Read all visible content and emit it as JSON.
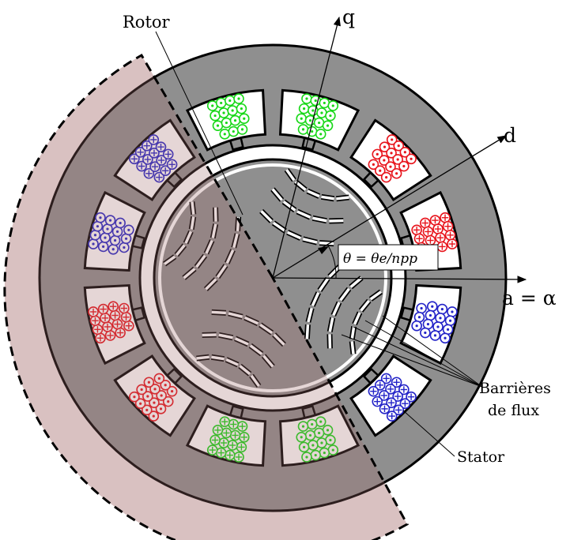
{
  "labels": {
    "rotor": "Rotor",
    "stator": "Stator",
    "q_axis": "q",
    "d_axis": "d",
    "a_axis": "a = α",
    "angle": "θ = θe/npp",
    "flux_barriers_line1": "Barrières",
    "flux_barriers_line2": "de flux"
  },
  "colors": {
    "stator": "#8f8f8f",
    "highlight_ring": "#efe2e2",
    "highlight_overlay": "#a08a8a",
    "slot_background": "#ffffff",
    "phase_red": "#e8141c",
    "phase_green": "#18d818",
    "phase_blue": "#2424c8",
    "outline": "#000000"
  },
  "slots": [
    {
      "id": "top-right",
      "phase": "green",
      "marker": "dot"
    },
    {
      "id": "top-left",
      "phase": "red",
      "marker": "dot"
    },
    {
      "id": "upper-left",
      "phase": "red",
      "marker": "cross"
    },
    {
      "id": "left-upper",
      "phase": "blue",
      "marker": "dot"
    },
    {
      "id": "left-lower",
      "phase": "blue",
      "marker": "cross"
    },
    {
      "id": "lower-left",
      "phase": "green",
      "marker": "dot"
    },
    {
      "id": "bottom-left",
      "phase": "green",
      "marker": "cross"
    },
    {
      "id": "bottom-right",
      "phase": "red",
      "marker": "dot"
    },
    {
      "id": "lower-right",
      "phase": "red",
      "marker": "cross"
    },
    {
      "id": "right-lower",
      "phase": "blue",
      "marker": "dot"
    },
    {
      "id": "right-upper",
      "phase": "blue",
      "marker": "cross"
    },
    {
      "id": "upper-right",
      "phase": "green",
      "marker": "dot"
    }
  ]
}
